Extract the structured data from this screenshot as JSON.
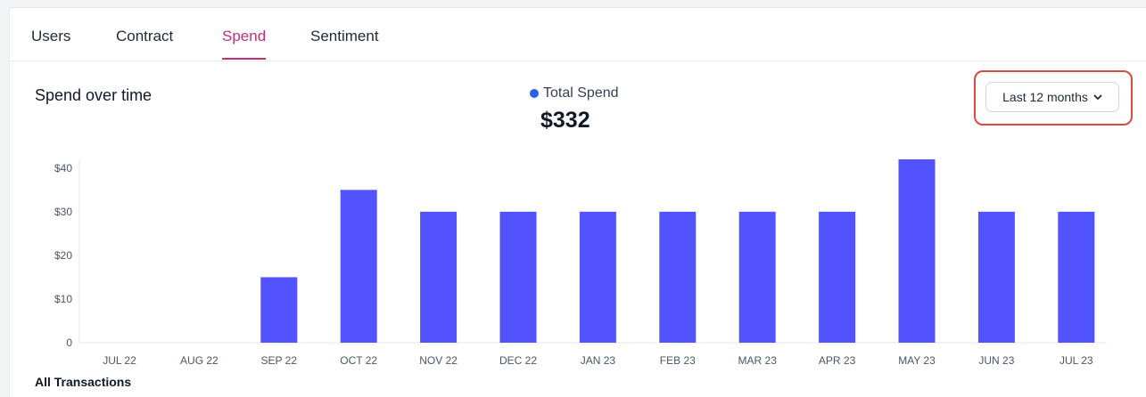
{
  "tabs": [
    {
      "label": "Users",
      "active": false
    },
    {
      "label": "Contract",
      "active": false
    },
    {
      "label": "Spend",
      "active": true
    },
    {
      "label": "Sentiment",
      "active": false
    }
  ],
  "colors": {
    "accent": "#c0307a",
    "bar": "#5252ff",
    "legend_dot": "#2563eb",
    "highlight": "#dc4a3d"
  },
  "range_selector": {
    "label": "Last 12 months",
    "icon": "chevron-down-icon"
  },
  "footer": {
    "title": "All Transactions"
  },
  "chart_data": {
    "type": "bar",
    "title": "Spend over time",
    "legend": [
      {
        "name": "Total Spend"
      }
    ],
    "total": "$332",
    "categories": [
      "JUL 22",
      "AUG 22",
      "SEP 22",
      "OCT 22",
      "NOV 22",
      "DEC 22",
      "JAN 23",
      "FEB 23",
      "MAR 23",
      "APR 23",
      "MAY 23",
      "JUN 23",
      "JUL 23"
    ],
    "series": [
      {
        "name": "Total Spend",
        "values": [
          0,
          0,
          15,
          35,
          30,
          30,
          30,
          30,
          30,
          30,
          42,
          30,
          30
        ]
      }
    ],
    "yticks": [
      "0",
      "$10",
      "$20",
      "$30",
      "$40"
    ],
    "ylim": [
      0,
      42
    ],
    "grid": false
  }
}
